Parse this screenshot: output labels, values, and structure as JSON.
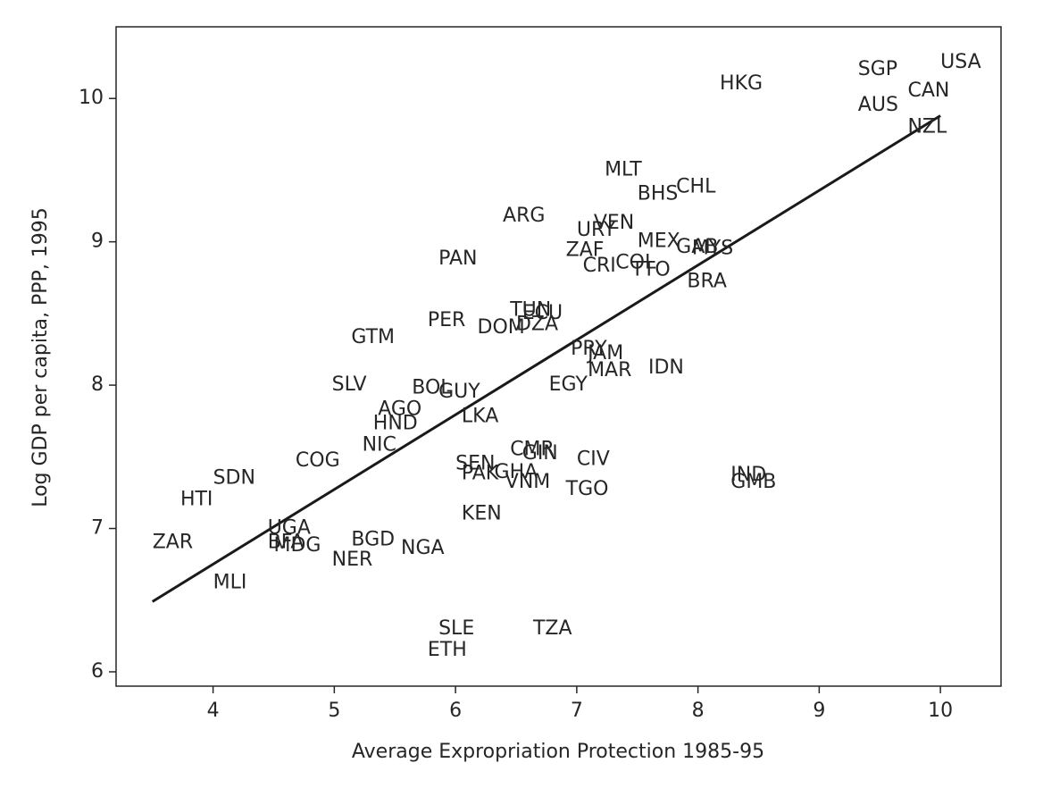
{
  "chart_data": {
    "type": "scatter",
    "title": "",
    "xlabel": "Average Expropriation Protection 1985-95",
    "ylabel": "Log GDP per capita, PPP, 1995",
    "xlim": [
      3.2,
      10.5
    ],
    "ylim": [
      5.9,
      10.5
    ],
    "xticks": [
      4,
      5,
      6,
      7,
      8,
      9,
      10
    ],
    "yticks": [
      6,
      7,
      8,
      9,
      10
    ],
    "grid": false,
    "marker": "text-label",
    "points": [
      {
        "label": "USA",
        "x": 10.0,
        "y": 10.25
      },
      {
        "label": "SGP",
        "x": 9.32,
        "y": 10.2
      },
      {
        "label": "CAN",
        "x": 9.73,
        "y": 10.05
      },
      {
        "label": "AUS",
        "x": 9.32,
        "y": 9.95
      },
      {
        "label": "NZL",
        "x": 9.73,
        "y": 9.8
      },
      {
        "label": "HKG",
        "x": 8.18,
        "y": 10.1
      },
      {
        "label": "MLT",
        "x": 7.23,
        "y": 9.5
      },
      {
        "label": "CHL",
        "x": 7.82,
        "y": 9.38
      },
      {
        "label": "BHS",
        "x": 7.5,
        "y": 9.33
      },
      {
        "label": "ARG",
        "x": 6.39,
        "y": 9.18
      },
      {
        "label": "VEN",
        "x": 7.14,
        "y": 9.13
      },
      {
        "label": "URY",
        "x": 7.0,
        "y": 9.08
      },
      {
        "label": "MEX",
        "x": 7.5,
        "y": 9.0
      },
      {
        "label": "GAB",
        "x": 7.82,
        "y": 8.96
      },
      {
        "label": "MYS",
        "x": 7.95,
        "y": 8.95
      },
      {
        "label": "ZAF",
        "x": 6.91,
        "y": 8.94
      },
      {
        "label": "PAN",
        "x": 5.86,
        "y": 8.88
      },
      {
        "label": "COL",
        "x": 7.32,
        "y": 8.85
      },
      {
        "label": "CRI",
        "x": 7.05,
        "y": 8.83
      },
      {
        "label": "TTO",
        "x": 7.45,
        "y": 8.8
      },
      {
        "label": "BRA",
        "x": 7.91,
        "y": 8.72
      },
      {
        "label": "TUN",
        "x": 6.45,
        "y": 8.52
      },
      {
        "label": "ECU",
        "x": 6.55,
        "y": 8.5
      },
      {
        "label": "DZA",
        "x": 6.5,
        "y": 8.42
      },
      {
        "label": "DOM",
        "x": 6.18,
        "y": 8.4
      },
      {
        "label": "PER",
        "x": 5.77,
        "y": 8.45
      },
      {
        "label": "GTM",
        "x": 5.14,
        "y": 8.33
      },
      {
        "label": "PRY",
        "x": 6.95,
        "y": 8.25
      },
      {
        "label": "JAM",
        "x": 7.09,
        "y": 8.22
      },
      {
        "label": "MAR",
        "x": 7.09,
        "y": 8.1
      },
      {
        "label": "IDN",
        "x": 7.59,
        "y": 8.12
      },
      {
        "label": "EGY",
        "x": 6.77,
        "y": 8.0
      },
      {
        "label": "SLV",
        "x": 4.98,
        "y": 8.0
      },
      {
        "label": "BOL",
        "x": 5.64,
        "y": 7.98
      },
      {
        "label": "GUY",
        "x": 5.86,
        "y": 7.95
      },
      {
        "label": "AGO",
        "x": 5.36,
        "y": 7.83
      },
      {
        "label": "LKA",
        "x": 6.05,
        "y": 7.78
      },
      {
        "label": "HND",
        "x": 5.32,
        "y": 7.73
      },
      {
        "label": "NIC",
        "x": 5.23,
        "y": 7.58
      },
      {
        "label": "COG",
        "x": 4.68,
        "y": 7.47
      },
      {
        "label": "CMR",
        "x": 6.45,
        "y": 7.55
      },
      {
        "label": "GIN",
        "x": 6.55,
        "y": 7.52
      },
      {
        "label": "CIV",
        "x": 7.0,
        "y": 7.48
      },
      {
        "label": "SEN",
        "x": 6.0,
        "y": 7.45
      },
      {
        "label": "PAK",
        "x": 6.05,
        "y": 7.38
      },
      {
        "label": "GHA",
        "x": 6.32,
        "y": 7.39
      },
      {
        "label": "VNM",
        "x": 6.41,
        "y": 7.32
      },
      {
        "label": "TGO",
        "x": 6.91,
        "y": 7.27
      },
      {
        "label": "IND",
        "x": 8.27,
        "y": 7.37
      },
      {
        "label": "GMB",
        "x": 8.27,
        "y": 7.32
      },
      {
        "label": "SDN",
        "x": 4.0,
        "y": 7.35
      },
      {
        "label": "HTI",
        "x": 3.73,
        "y": 7.2
      },
      {
        "label": "KEN",
        "x": 6.05,
        "y": 7.1
      },
      {
        "label": "UGA",
        "x": 4.45,
        "y": 7.0
      },
      {
        "label": "ZAR",
        "x": 3.5,
        "y": 6.9
      },
      {
        "label": "BFA",
        "x": 4.45,
        "y": 6.9
      },
      {
        "label": "MDG",
        "x": 4.5,
        "y": 6.88
      },
      {
        "label": "BGD",
        "x": 5.14,
        "y": 6.92
      },
      {
        "label": "NGA",
        "x": 5.55,
        "y": 6.86
      },
      {
        "label": "NER",
        "x": 4.98,
        "y": 6.78
      },
      {
        "label": "MLI",
        "x": 4.0,
        "y": 6.62
      },
      {
        "label": "SLE",
        "x": 5.86,
        "y": 6.3
      },
      {
        "label": "TZA",
        "x": 6.64,
        "y": 6.3
      },
      {
        "label": "ETH",
        "x": 5.77,
        "y": 6.15
      }
    ],
    "fit_line": {
      "x": [
        3.5,
        10.0
      ],
      "y": [
        6.49,
        9.88
      ]
    },
    "colors": {
      "text": "#262626",
      "line": "#1a1a1a",
      "axes": "#262626"
    }
  }
}
